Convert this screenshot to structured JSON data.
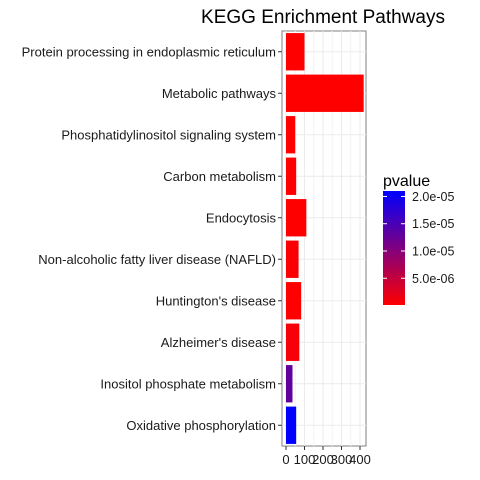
{
  "chart_data": {
    "type": "bar",
    "orientation": "horizontal",
    "title": "KEGG Enrichment Pathways",
    "xlabel": "",
    "ylabel": "",
    "categories": [
      "Protein processing in endoplasmic reticulum",
      "Metabolic pathways",
      "Phosphatidylinositol signaling system",
      "Carbon metabolism",
      "Endocytosis",
      "Non-alcoholic fatty liver disease (NAFLD)",
      "Huntington's disease",
      "Alzheimer's disease",
      "Inositol phosphate metabolism",
      "Oxidative phosphorylation"
    ],
    "values": [
      100,
      420,
      50,
      55,
      110,
      68,
      82,
      72,
      35,
      55
    ],
    "pvalues": [
      1e-07,
      1e-07,
      1e-07,
      1e-07,
      1e-07,
      5e-07,
      1e-07,
      8e-07,
      1.3e-05,
      2.1e-05
    ],
    "xlim": [
      0,
      440
    ],
    "xticks": [
      0,
      100,
      200,
      300,
      400
    ],
    "xtick_labels": [
      "0",
      "100",
      "200",
      "300",
      "400"
    ],
    "grid": true,
    "legend": {
      "title": "pvalue",
      "position": "right",
      "range": [
        1e-07,
        2.1e-05
      ],
      "ticks": [
        2e-05,
        1.5e-05,
        1e-05,
        5e-06
      ],
      "tick_labels": [
        "2.0e-05",
        "1.5e-05",
        "1.0e-05",
        "5.0e-06"
      ],
      "color_low": "#ff0000",
      "color_high": "#0000ff"
    }
  }
}
